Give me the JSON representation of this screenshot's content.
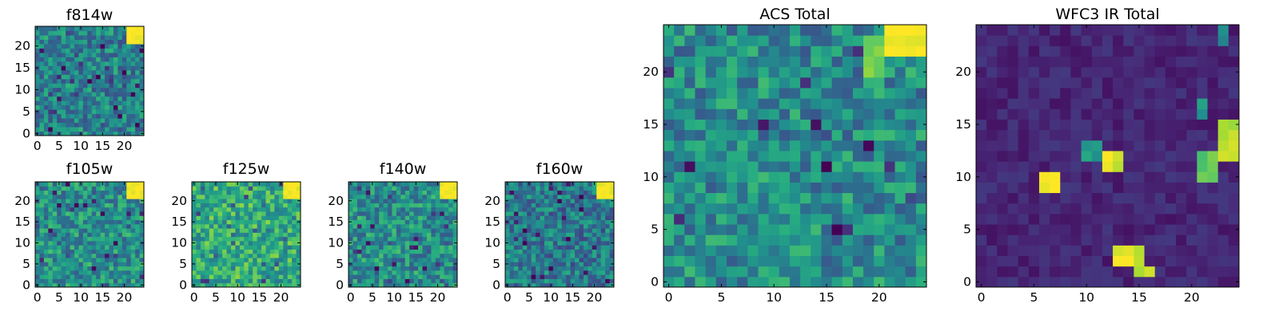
{
  "colormap": "viridis",
  "chart_data": [
    {
      "type": "heatmap",
      "id": "f814w",
      "title": "f814w",
      "grid_size": [
        25,
        25
      ],
      "xticks": [
        0,
        5,
        10,
        15,
        20
      ],
      "yticks": [
        0,
        5,
        10,
        15,
        20
      ],
      "description_of_values": "mostly mid-range noise with a bright region in the top-right corner",
      "hot_spots": [
        {
          "x": [
            21,
            24
          ],
          "y": [
            21,
            24
          ],
          "level": 1.0
        }
      ],
      "background_level": 0.45,
      "seed": 814
    },
    {
      "type": "heatmap",
      "id": "f105w",
      "title": "f105w",
      "grid_size": [
        25,
        25
      ],
      "xticks": [
        0,
        5,
        10,
        15,
        20
      ],
      "yticks": [
        0,
        5,
        10,
        15,
        20
      ],
      "hot_spots": [
        {
          "x": [
            21,
            24
          ],
          "y": [
            21,
            24
          ],
          "level": 1.0
        }
      ],
      "background_level": 0.5,
      "seed": 105
    },
    {
      "type": "heatmap",
      "id": "f125w",
      "title": "f125w",
      "grid_size": [
        25,
        25
      ],
      "xticks": [
        0,
        5,
        10,
        15,
        20
      ],
      "yticks": [
        0,
        5,
        10,
        15,
        20
      ],
      "hot_spots": [
        {
          "x": [
            21,
            24
          ],
          "y": [
            21,
            24
          ],
          "level": 1.0
        }
      ],
      "background_level": 0.62,
      "seed": 125
    },
    {
      "type": "heatmap",
      "id": "f140w",
      "title": "f140w",
      "grid_size": [
        25,
        25
      ],
      "xticks": [
        0,
        5,
        10,
        15,
        20
      ],
      "yticks": [
        0,
        5,
        10,
        15,
        20
      ],
      "hot_spots": [
        {
          "x": [
            21,
            24
          ],
          "y": [
            21,
            24
          ],
          "level": 1.0
        }
      ],
      "background_level": 0.5,
      "seed": 140
    },
    {
      "type": "heatmap",
      "id": "f160w",
      "title": "f160w",
      "grid_size": [
        25,
        25
      ],
      "xticks": [
        0,
        5,
        10,
        15,
        20
      ],
      "yticks": [
        0,
        5,
        10,
        15,
        20
      ],
      "hot_spots": [
        {
          "x": [
            21,
            24
          ],
          "y": [
            21,
            24
          ],
          "level": 1.0
        }
      ],
      "background_level": 0.42,
      "seed": 160
    },
    {
      "type": "heatmap",
      "id": "acs-total",
      "title": "ACS Total",
      "grid_size": [
        25,
        25
      ],
      "xticks": [
        0,
        5,
        10,
        15,
        20
      ],
      "yticks": [
        0,
        5,
        10,
        15,
        20
      ],
      "hot_spots": [
        {
          "x": [
            21,
            24
          ],
          "y": [
            22,
            24
          ],
          "level": 1.0
        },
        {
          "x": [
            19,
            20
          ],
          "y": [
            20,
            23
          ],
          "level": 0.8
        }
      ],
      "background_level": 0.48,
      "seed": 999
    },
    {
      "type": "heatmap",
      "id": "wfc3-ir-total",
      "title": "WFC3 IR Total",
      "grid_size": [
        25,
        25
      ],
      "xticks": [
        0,
        5,
        10,
        15,
        20
      ],
      "yticks": [
        0,
        5,
        10,
        15,
        20
      ],
      "hot_spots": [
        {
          "x": [
            6,
            7
          ],
          "y": [
            9,
            10
          ],
          "level": 1.0
        },
        {
          "x": [
            12,
            13
          ],
          "y": [
            11,
            12
          ],
          "level": 0.95
        },
        {
          "x": [
            10,
            11
          ],
          "y": [
            12,
            13
          ],
          "level": 0.55
        },
        {
          "x": [
            13,
            15
          ],
          "y": [
            2,
            3
          ],
          "level": 0.95
        },
        {
          "x": [
            15,
            16
          ],
          "y": [
            1,
            1
          ],
          "level": 0.9
        },
        {
          "x": [
            23,
            24
          ],
          "y": [
            12,
            15
          ],
          "level": 0.9
        },
        {
          "x": [
            21,
            22
          ],
          "y": [
            10,
            12
          ],
          "level": 0.75
        },
        {
          "x": [
            21,
            21
          ],
          "y": [
            16,
            17
          ],
          "level": 0.55
        },
        {
          "x": [
            23,
            23
          ],
          "y": [
            23,
            24
          ],
          "level": 0.45
        }
      ],
      "background_level": 0.05,
      "seed": 333
    }
  ]
}
